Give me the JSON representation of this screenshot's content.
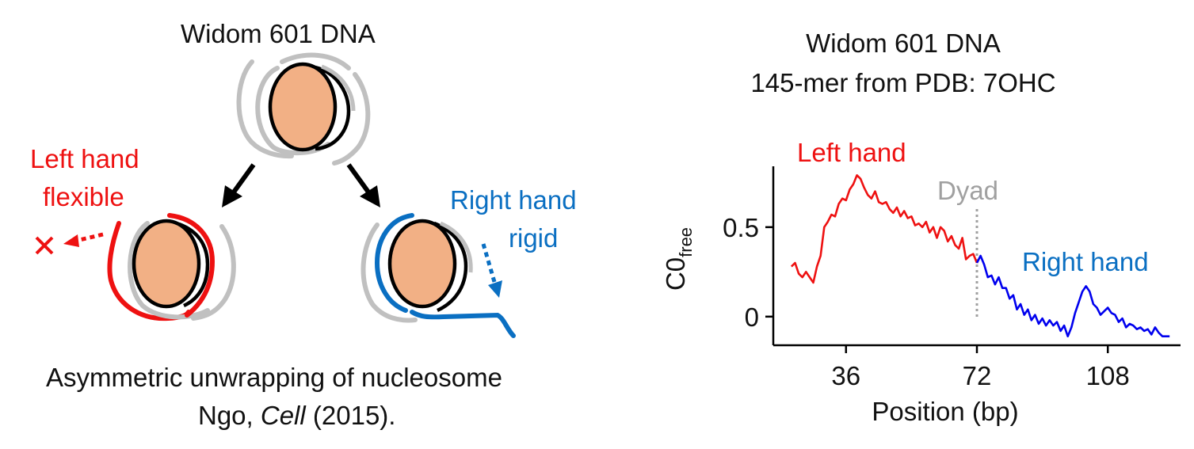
{
  "left_panel": {
    "title": "Widom 601 DNA",
    "left_label_line1": "Left hand",
    "left_label_line2": "flexible",
    "right_label_line1": "Right hand",
    "right_label_line2": "rigid",
    "caption_line1": "Asymmetric unwrapping of nucleosome",
    "caption_line2_author": "Ngo, ",
    "caption_line2_journal": "Cell",
    "caption_line2_year": " (2015).",
    "colors": {
      "histone_fill": "#f2b085",
      "dna_gray": "#c0c0c0",
      "left_red": "#ee1111",
      "right_blue": "#0a6fc2",
      "arrow_black": "#000000"
    },
    "icons": [
      "nucleosome-icon",
      "dna-wrap-icon",
      "dotted-arrow-icon",
      "cross-mark-icon"
    ]
  },
  "chart_data": {
    "type": "line",
    "title_line1": "Widom 601 DNA",
    "title_line2": "145-mer from PDB: 7OHC",
    "xlabel": "Position (bp)",
    "ylabel_main": "C0",
    "ylabel_sub": "free",
    "xlim": [
      16,
      128
    ],
    "ylim": [
      -0.16,
      0.84
    ],
    "xticks": [
      36,
      72,
      108
    ],
    "yticks": [
      0,
      0.5
    ],
    "ytick_labels": [
      "0",
      "0.5"
    ],
    "grid": false,
    "dyad": {
      "x": 72,
      "label": "Dyad",
      "color": "#a0a0a0"
    },
    "annotations": [
      {
        "text": "Left hand",
        "color": "#ee1111"
      },
      {
        "text": "Right hand",
        "color": "#0a6fc2"
      }
    ],
    "series": [
      {
        "color": "#ee1111",
        "x": [
          21,
          22,
          23,
          24,
          25,
          26,
          27,
          28,
          29,
          30,
          31,
          32,
          33,
          34,
          35,
          36,
          37,
          38,
          39,
          40,
          41,
          42,
          43,
          44,
          45,
          46,
          47,
          48,
          49,
          50,
          51,
          52,
          53,
          54,
          55,
          56,
          57,
          58,
          59,
          60,
          61,
          62,
          63,
          64,
          65,
          66,
          67,
          68,
          69,
          70,
          71,
          72
        ],
        "y": [
          0.28,
          0.3,
          0.24,
          0.22,
          0.25,
          0.22,
          0.19,
          0.28,
          0.34,
          0.5,
          0.53,
          0.57,
          0.56,
          0.63,
          0.66,
          0.65,
          0.71,
          0.74,
          0.79,
          0.77,
          0.72,
          0.68,
          0.66,
          0.7,
          0.64,
          0.63,
          0.64,
          0.6,
          0.58,
          0.61,
          0.56,
          0.59,
          0.55,
          0.56,
          0.51,
          0.52,
          0.5,
          0.53,
          0.47,
          0.5,
          0.44,
          0.5,
          0.48,
          0.42,
          0.45,
          0.4,
          0.38,
          0.44,
          0.32,
          0.34,
          0.35,
          0.3
        ]
      },
      {
        "color": "#0000ee",
        "x": [
          72,
          73,
          74,
          75,
          76,
          77,
          78,
          79,
          80,
          81,
          82,
          83,
          84,
          85,
          86,
          87,
          88,
          89,
          90,
          91,
          92,
          93,
          94,
          95,
          96,
          97,
          98,
          99,
          100,
          101,
          102,
          103,
          104,
          105,
          106,
          107,
          108,
          109,
          110,
          111,
          112,
          113,
          114,
          115,
          116,
          117,
          118,
          119,
          120,
          121,
          122,
          123,
          124,
          125
        ],
        "y": [
          0.3,
          0.34,
          0.29,
          0.22,
          0.23,
          0.18,
          0.22,
          0.16,
          0.16,
          0.1,
          0.12,
          0.04,
          0.07,
          0.01,
          0.04,
          -0.02,
          0.01,
          -0.04,
          -0.01,
          -0.05,
          -0.02,
          -0.05,
          -0.03,
          -0.08,
          -0.05,
          -0.11,
          -0.06,
          0.02,
          0.08,
          0.14,
          0.17,
          0.14,
          0.07,
          0.05,
          0.01,
          0.03,
          0.05,
          0.02,
          0.01,
          -0.03,
          -0.01,
          -0.06,
          -0.04,
          -0.05,
          -0.07,
          -0.06,
          -0.08,
          -0.07,
          -0.1,
          -0.06,
          -0.09,
          -0.11,
          -0.11,
          -0.11
        ]
      }
    ]
  }
}
